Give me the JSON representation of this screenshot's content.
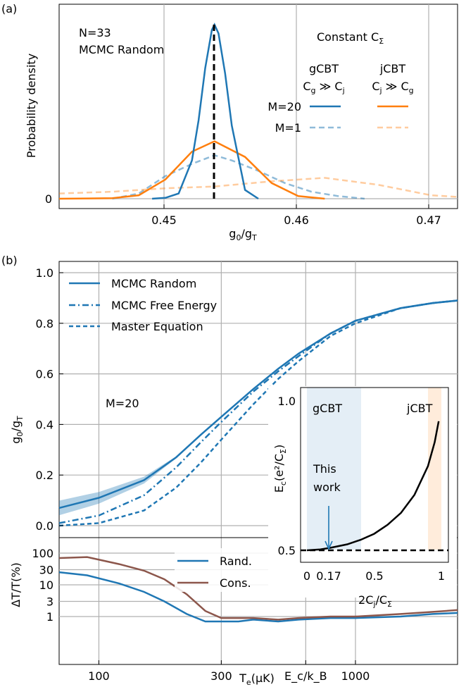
{
  "panel_a": {
    "label": "(a)",
    "ylabel": "Probability density",
    "xlabel": "g₀/g_T",
    "xticks": [
      "0.45",
      "0.46",
      "0.47"
    ],
    "ytick": "0",
    "text_n": "N=33",
    "text_method": "MCMC Random",
    "legend_title": "Constant C_Σ",
    "col_gcbt": "gCBT",
    "col_gcbt_cond": "C_g ≫ C_j",
    "col_jcbt": "jCBT",
    "col_jcbt_cond": "C_j ≫ C_g",
    "row_m20": "M=20",
    "row_m1": "M=1"
  },
  "panel_b": {
    "label": "(b)",
    "ylabel": "g₀/g_T",
    "yticks": [
      "0.0",
      "0.2",
      "0.4",
      "0.6",
      "0.8",
      "1.0"
    ],
    "legend": [
      "MCMC Random",
      "MCMC Free Energy",
      "Master Equation"
    ],
    "annotation": "M=20",
    "lower_ylabel": "ΔT/T(%)",
    "lower_yticks": [
      "1",
      "3",
      "10",
      "30",
      "100"
    ],
    "lower_legend": [
      "Rand.",
      "Cons."
    ],
    "xlabel": "Tₑ(μK)",
    "xticks": [
      "100",
      "300",
      "E_c/k_B",
      "1000"
    ],
    "inset": {
      "ylabel": "E_c(e²/C_Σ)",
      "yticks": [
        "0.5",
        "1.0"
      ],
      "xlabel": "2C_j/C_Σ",
      "xticks": [
        "0",
        "0.17",
        "0.5",
        "1"
      ],
      "region_g": "gCBT",
      "region_j": "jCBT",
      "annotation_line1": "This",
      "annotation_line2": "work"
    }
  },
  "colors": {
    "blue": "#1f77b4",
    "orange": "#ff7f0e",
    "brown": "#8c564b"
  },
  "chart_data": [
    {
      "type": "line",
      "panel": "a",
      "xlabel": "g₀/g_T",
      "ylabel": "Probability density",
      "xlim": [
        0.442,
        0.472
      ],
      "vertical_line_x": 0.4537,
      "series": [
        {
          "name": "gCBT M=20",
          "x": [
            0.449,
            0.45,
            0.451,
            0.452,
            0.4525,
            0.453,
            0.4535,
            0.4537,
            0.454,
            0.4545,
            0.455,
            0.456,
            0.457
          ],
          "y": [
            0.0,
            0.005,
            0.03,
            0.22,
            0.45,
            0.75,
            0.97,
            1.0,
            0.95,
            0.72,
            0.42,
            0.05,
            0.0
          ]
        },
        {
          "name": "jCBT M=20",
          "x": [
            0.442,
            0.446,
            0.448,
            0.45,
            0.452,
            0.4537,
            0.456,
            0.458,
            0.46,
            0.462
          ],
          "y": [
            0.0,
            0.003,
            0.02,
            0.11,
            0.27,
            0.33,
            0.24,
            0.09,
            0.015,
            0.0
          ]
        },
        {
          "name": "gCBT M=1",
          "x": [
            0.446,
            0.448,
            0.449,
            0.45,
            0.452,
            0.4537,
            0.455,
            0.457,
            0.459,
            0.461,
            0.463,
            0.465
          ],
          "y": [
            0.0,
            0.03,
            0.08,
            0.13,
            0.2,
            0.25,
            0.22,
            0.16,
            0.09,
            0.04,
            0.015,
            0.0
          ]
        },
        {
          "name": "jCBT M=1",
          "x": [
            0.442,
            0.446,
            0.45,
            0.4537,
            0.458,
            0.462,
            0.466,
            0.47,
            0.472
          ],
          "y": [
            0.03,
            0.04,
            0.06,
            0.07,
            0.1,
            0.12,
            0.08,
            0.02,
            0.01
          ]
        }
      ]
    },
    {
      "type": "line",
      "panel": "b",
      "xscale": "log",
      "xlabel": "Tₑ(μK)",
      "ylabel": "g₀/g_T",
      "ylim": [
        -0.05,
        1.02
      ],
      "series": [
        {
          "name": "MCMC Random",
          "x": [
            70,
            100,
            150,
            200,
            250,
            300,
            400,
            500,
            600,
            800,
            1000,
            1500,
            2000,
            2500
          ],
          "y": [
            0.07,
            0.11,
            0.18,
            0.27,
            0.36,
            0.43,
            0.54,
            0.62,
            0.68,
            0.76,
            0.81,
            0.86,
            0.88,
            0.89
          ]
        },
        {
          "name": "MCMC Free Energy",
          "x": [
            70,
            100,
            150,
            200,
            250,
            300,
            400,
            500,
            600,
            800,
            1000,
            1500,
            2000,
            2500
          ],
          "y": [
            0.01,
            0.04,
            0.12,
            0.23,
            0.33,
            0.41,
            0.53,
            0.61,
            0.67,
            0.76,
            0.81,
            0.86,
            0.88,
            0.89
          ]
        },
        {
          "name": "Master Equation",
          "x": [
            70,
            100,
            150,
            200,
            250,
            300,
            400,
            500,
            600,
            800,
            1000,
            1500,
            2000,
            2500
          ],
          "y": [
            0.0,
            0.01,
            0.06,
            0.15,
            0.25,
            0.34,
            0.48,
            0.58,
            0.65,
            0.75,
            0.8,
            0.86,
            0.88,
            0.89
          ]
        }
      ]
    },
    {
      "type": "line",
      "panel": "b-lower",
      "xscale": "log",
      "yscale": "log",
      "ylabel": "ΔT/T(%)",
      "series": [
        {
          "name": "Rand.",
          "x": [
            70,
            90,
            120,
            150,
            180,
            220,
            260,
            300,
            350,
            400,
            500,
            600,
            800,
            1000,
            1500,
            2000,
            2500
          ],
          "y": [
            25,
            20,
            11,
            6,
            3,
            1.2,
            0.7,
            0.7,
            0.7,
            0.8,
            0.7,
            0.8,
            0.9,
            0.9,
            1.0,
            1.2,
            1.3
          ]
        },
        {
          "name": "Cons.",
          "x": [
            70,
            90,
            120,
            150,
            180,
            220,
            260,
            300,
            350,
            400,
            500,
            600,
            800,
            1000,
            1500,
            2000,
            2500
          ],
          "y": [
            70,
            75,
            45,
            28,
            15,
            5,
            1.5,
            0.9,
            0.9,
            0.9,
            0.8,
            0.9,
            1.0,
            1.0,
            1.2,
            1.4,
            1.6
          ]
        }
      ]
    },
    {
      "type": "line",
      "panel": "b-inset",
      "xlabel": "2C_j/C_Σ",
      "ylabel": "E_c(e²/C_Σ)",
      "xlim": [
        0,
        1
      ],
      "ylim": [
        0.5,
        1.0
      ],
      "series": [
        {
          "name": "E_c",
          "x": [
            0,
            0.1,
            0.17,
            0.3,
            0.4,
            0.5,
            0.6,
            0.7,
            0.8,
            0.9,
            0.95,
            0.98
          ],
          "y": [
            0.5,
            0.503,
            0.508,
            0.52,
            0.535,
            0.555,
            0.585,
            0.625,
            0.685,
            0.78,
            0.86,
            0.93
          ]
        }
      ]
    }
  ]
}
